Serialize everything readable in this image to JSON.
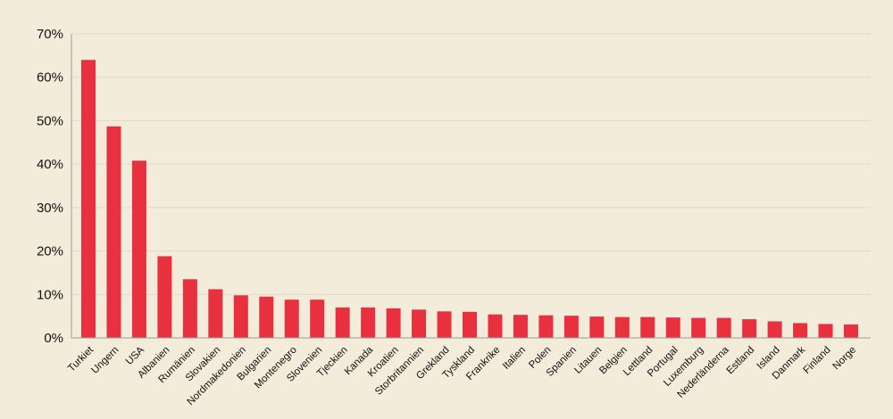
{
  "chart_data": {
    "type": "bar",
    "title": "",
    "xlabel": "",
    "ylabel": "",
    "ylim": [
      0,
      70
    ],
    "yticks": [
      0,
      10,
      20,
      30,
      40,
      50,
      60,
      70
    ],
    "ytick_labels": [
      "0%",
      "10%",
      "20%",
      "30%",
      "40%",
      "50%",
      "60%",
      "70%"
    ],
    "grid": true,
    "legend": "none",
    "bar_color": "#e8303f",
    "grid_color": "#e3d8c0",
    "categories": [
      "Turkiet",
      "Ungern",
      "USA",
      "Albanien",
      "Rumänien",
      "Slovakien",
      "Nordmakedonien",
      "Bulgarien",
      "Montenegro",
      "Slovenien",
      "Tjeckien",
      "Kanada",
      "Kroatien",
      "Storbritannien",
      "Grekland",
      "Tyskland",
      "Frankrike",
      "Italien",
      "Polen",
      "Spanien",
      "Litauen",
      "Belgien",
      "Lettland",
      "Portugal",
      "Luxemburg",
      "Nederländerna",
      "Estland",
      "Island",
      "Danmark",
      "Finland",
      "Norge"
    ],
    "values": [
      64.0,
      48.7,
      40.8,
      18.8,
      13.5,
      11.2,
      9.8,
      9.5,
      8.8,
      8.8,
      7.0,
      7.0,
      6.8,
      6.5,
      6.1,
      6.0,
      5.4,
      5.3,
      5.2,
      5.1,
      4.9,
      4.8,
      4.8,
      4.7,
      4.6,
      4.6,
      4.3,
      3.8,
      3.4,
      3.2,
      3.1
    ]
  }
}
